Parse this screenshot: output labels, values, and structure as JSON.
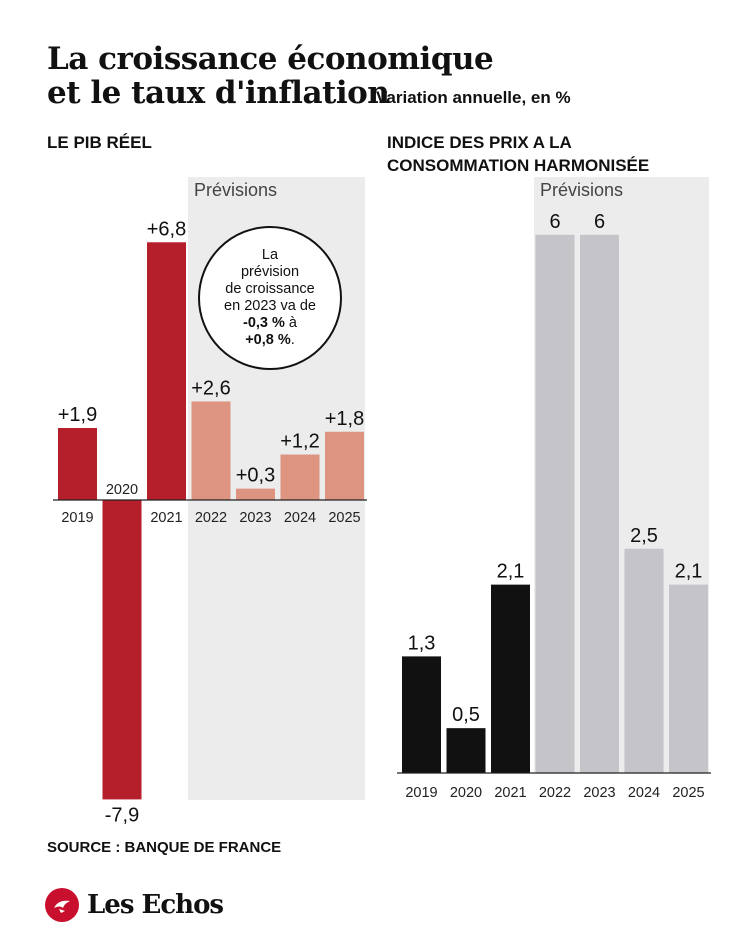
{
  "header": {
    "title_line1": "La croissance économique",
    "title_line2": "et le taux d'inflation",
    "subtitle": "Variation annuelle, en %"
  },
  "source": "SOURCE : BANQUE DE FRANCE",
  "brand": {
    "name": "Les Echos",
    "color": "#c8102e"
  },
  "annotation": {
    "line1": "La",
    "line2": "prévision",
    "line3": "de croissance",
    "line4": "en 2023 va de",
    "bold1": "-0,3 %",
    "mid": " à",
    "bold2": "+0,8 %",
    "end": "."
  },
  "chart_data": [
    {
      "type": "bar",
      "title": "LE PIB RÉEL",
      "forecast_label": "Prévisions",
      "categories": [
        "2019",
        "2020",
        "2021",
        "2022",
        "2023",
        "2024",
        "2025"
      ],
      "values": [
        1.9,
        -7.9,
        6.8,
        2.6,
        0.3,
        1.2,
        1.8
      ],
      "value_labels": [
        "+1,9",
        "-7,9",
        "+6,8",
        "+2,6",
        "+0,3",
        "+1,2",
        "+1,8"
      ],
      "forecast": [
        false,
        false,
        false,
        true,
        true,
        true,
        true
      ],
      "colors": {
        "actual": "#b51f2b",
        "forecast": "#dd9582",
        "shade": "#ececec"
      },
      "ylim": [
        -7.9,
        6.8
      ]
    },
    {
      "type": "bar",
      "title": "INDICE DES PRIX A LA CONSOMMATION HARMONISÉE",
      "forecast_label": "Prévisions",
      "categories": [
        "2019",
        "2020",
        "2021",
        "2022",
        "2023",
        "2024",
        "2025"
      ],
      "values": [
        1.3,
        0.5,
        2.1,
        6,
        6,
        2.5,
        2.1
      ],
      "value_labels": [
        "1,3",
        "0,5",
        "2,1",
        "6",
        "6",
        "2,5",
        "2,1"
      ],
      "forecast": [
        false,
        false,
        false,
        true,
        true,
        true,
        true
      ],
      "colors": {
        "actual": "#111111",
        "forecast": "#c4c4c9",
        "shade": "#ececec"
      },
      "ylim": [
        0,
        6
      ]
    }
  ]
}
